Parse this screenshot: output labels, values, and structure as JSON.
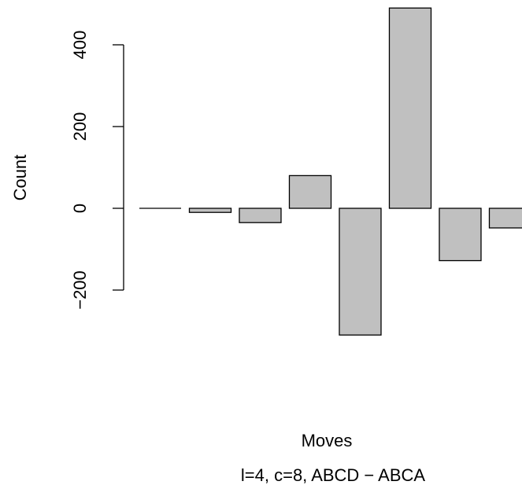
{
  "chart_data": {
    "type": "bar",
    "xlabel": "Moves",
    "subtitle": "l=4, c=8, ABCD − ABCA",
    "ylabel": "Count",
    "values": [
      0,
      -10,
      -35,
      80,
      -310,
      490,
      -128,
      -48
    ],
    "y_ticks": [
      {
        "value": -200,
        "label": "−200"
      },
      {
        "value": 0,
        "label": "0"
      },
      {
        "value": 200,
        "label": "200"
      },
      {
        "value": 400,
        "label": "400"
      }
    ],
    "bar_fill": "#c0c0c0",
    "bar_stroke": "#000000",
    "grid": false,
    "legend": "none"
  }
}
